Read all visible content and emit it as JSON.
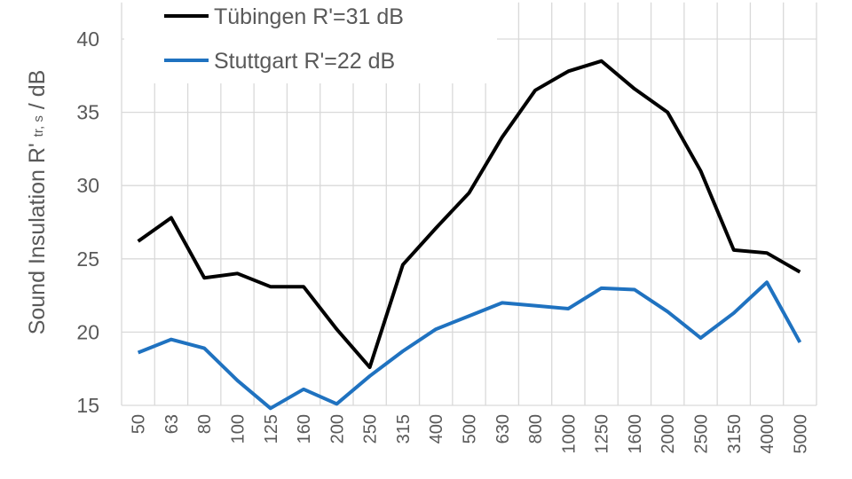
{
  "chart_data": {
    "type": "line",
    "y_label": "Sound Insulation R'",
    "y_label_subscript": "tr, s",
    "y_label_suffix": "/ dB",
    "categories": [
      "50",
      "63",
      "80",
      "100",
      "125",
      "160",
      "200",
      "250",
      "315",
      "400",
      "500",
      "630",
      "800",
      "1000",
      "1250",
      "1600",
      "2000",
      "2500",
      "3150",
      "4000",
      "5000"
    ],
    "series": [
      {
        "name": "Tübingen R'=31 dB",
        "color": "#000000",
        "values": [
          26.2,
          27.8,
          23.7,
          24.0,
          23.1,
          23.1,
          20.2,
          17.6,
          24.6,
          27.1,
          29.5,
          33.3,
          36.5,
          37.8,
          38.5,
          36.6,
          35.0,
          31.0,
          25.6,
          25.4,
          24.1
        ]
      },
      {
        "name": "Stuttgart R'=22 dB",
        "color": "#1f72c0",
        "values": [
          18.6,
          19.5,
          18.9,
          16.7,
          14.8,
          16.1,
          15.1,
          17.0,
          18.7,
          20.2,
          21.1,
          22.0,
          21.8,
          21.6,
          23.0,
          22.9,
          21.4,
          19.6,
          21.3,
          23.4,
          19.3
        ]
      }
    ],
    "ylim": [
      15,
      42.5
    ],
    "yticks": [
      15,
      20,
      25,
      30,
      35,
      40
    ],
    "grid": true,
    "legend": "top-left"
  }
}
